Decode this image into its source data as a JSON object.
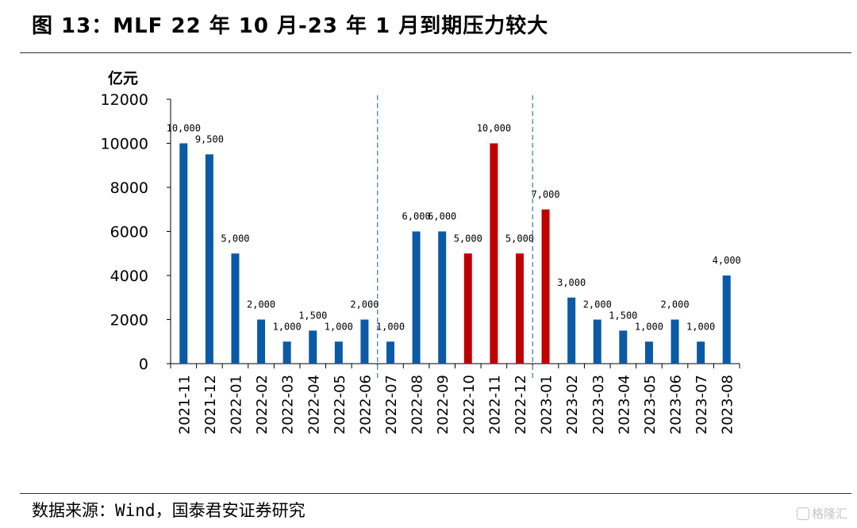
{
  "title": "图 13：MLF 22 年 10 月-23 年 1 月到期压力较大",
  "source": "数据来源：Wind，国泰君安证券研究",
  "watermark": "格隆汇",
  "colors": {
    "blue": "#0b5aa6",
    "red": "#c00000",
    "divider": "#5b8fc9",
    "axis": "#000000"
  },
  "chart_data": {
    "type": "bar",
    "ylabel": "亿元",
    "ylim": [
      0,
      12000
    ],
    "yticks": [
      0,
      2000,
      4000,
      6000,
      8000,
      10000,
      12000
    ],
    "yticklabels": [
      "0",
      "2000",
      "4000",
      "6000",
      "8000",
      "10000",
      "12000"
    ],
    "categories": [
      "2021-11",
      "2021-12",
      "2022-01",
      "2022-02",
      "2022-03",
      "2022-04",
      "2022-05",
      "2022-06",
      "2022-07",
      "2022-08",
      "2022-09",
      "2022-10",
      "2022-11",
      "2022-12",
      "2023-01",
      "2023-02",
      "2023-03",
      "2023-04",
      "2023-05",
      "2023-06",
      "2023-07",
      "2023-08"
    ],
    "values": [
      10000,
      9500,
      5000,
      2000,
      1000,
      1500,
      1000,
      2000,
      1000,
      6000,
      6000,
      5000,
      10000,
      5000,
      7000,
      3000,
      2000,
      1500,
      1000,
      2000,
      1000,
      4000
    ],
    "data_labels": [
      "10,000",
      "9,500",
      "5,000",
      "2,000",
      "1,000",
      "1,500",
      "1,000",
      "2,000",
      "1,000",
      "6,000",
      "6,000",
      "5,000",
      "10,000",
      "5,000",
      "7,000",
      "3,000",
      "2,000",
      "1,500",
      "1,000",
      "2,000",
      "1,000",
      "4,000"
    ],
    "highlight_categories": [
      "2022-10",
      "2022-11",
      "2022-12",
      "2023-01"
    ],
    "divider_after_categories": [
      "2022-06",
      "2022-12"
    ],
    "grid": false,
    "legend": false
  }
}
